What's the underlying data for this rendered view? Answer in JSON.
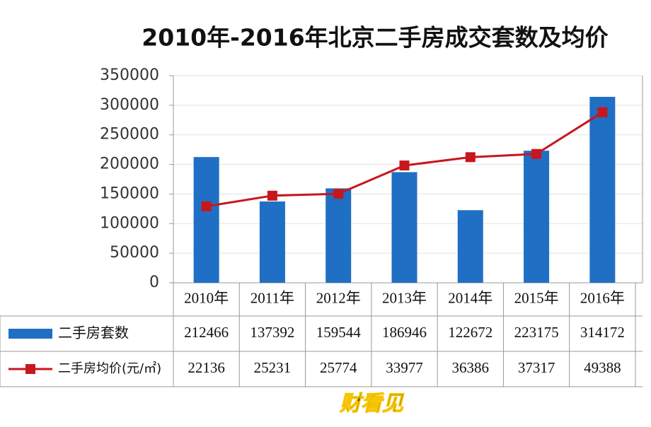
{
  "chart_data": {
    "type": "bar_line_table",
    "title": "2010年-2016年北京二手房成交套数及均价",
    "categories": [
      "2010年",
      "2011年",
      "2012年",
      "2013年",
      "2014年",
      "2015年",
      "2016年"
    ],
    "series": [
      {
        "name": "二手房套数",
        "color": "#1f6fc4",
        "type": "bar",
        "values": [
          212466,
          137392,
          159544,
          186946,
          122672,
          223175,
          314172
        ]
      },
      {
        "name": "二手房均价(元/㎡)",
        "color": "#c8161d",
        "type": "line",
        "axis": "y2",
        "values": [
          22136,
          25231,
          25774,
          33977,
          36386,
          37317,
          49388
        ]
      }
    ],
    "ylim": [
      0,
      350000
    ],
    "yticks": [
      0,
      50000,
      100000,
      150000,
      200000,
      250000,
      300000,
      350000
    ],
    "y2lim": [
      0,
      60000
    ],
    "grid": true,
    "logo": "财看见"
  }
}
